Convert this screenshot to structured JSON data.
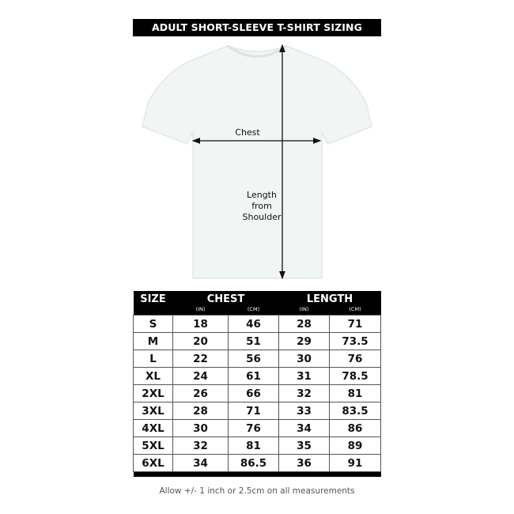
{
  "title": "ADULT SHORT-SLEEVE T-SHIRT SIZING",
  "diagram": {
    "chest_label": "Chest",
    "length_label_lines": [
      "Length",
      "from",
      "Shoulder"
    ]
  },
  "table": {
    "headers": {
      "size": "SIZE",
      "chest": "CHEST",
      "length": "LENGTH"
    },
    "units": {
      "chest_in": "(IN)",
      "chest_cm": "(CM)",
      "length_in": "(IN)",
      "length_cm": "(CM)"
    },
    "rows": [
      [
        "S",
        "18",
        "46",
        "28",
        "71"
      ],
      [
        "M",
        "20",
        "51",
        "29",
        "73.5"
      ],
      [
        "L",
        "22",
        "56",
        "30",
        "76"
      ],
      [
        "XL",
        "24",
        "61",
        "31",
        "78.5"
      ],
      [
        "2XL",
        "26",
        "66",
        "32",
        "81"
      ],
      [
        "3XL",
        "28",
        "71",
        "33",
        "83.5"
      ],
      [
        "4XL",
        "30",
        "76",
        "34",
        "86"
      ],
      [
        "5XL",
        "32",
        "81",
        "35",
        "89"
      ],
      [
        "6XL",
        "34",
        "86.5",
        "36",
        "91"
      ]
    ]
  },
  "footnote": "Allow +/- 1 inch or 2.5cm on all measurements"
}
